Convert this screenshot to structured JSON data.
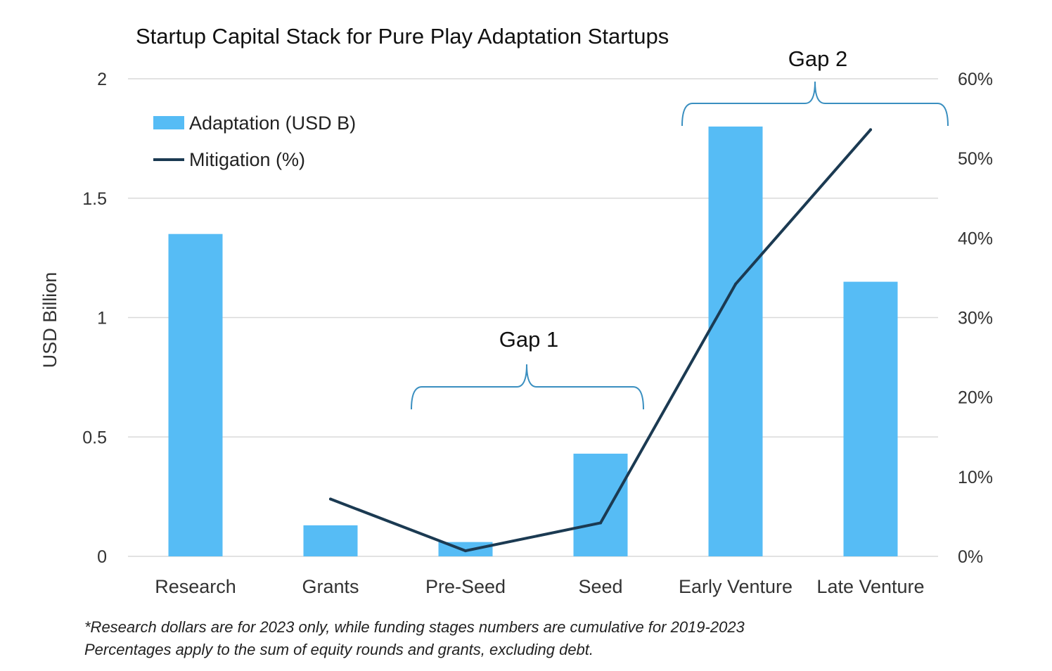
{
  "chart_data": {
    "type": "bar+line",
    "title": "Startup Capital Stack for Pure Play Adaptation Startups",
    "ylabel": "USD Billion",
    "ylim": [
      0,
      2
    ],
    "y_ticks": [
      "0",
      "0.5",
      "1",
      "1.5",
      "2"
    ],
    "y2lim": [
      0,
      60
    ],
    "y2_ticks": [
      "0%",
      "10%",
      "20%",
      "30%",
      "40%",
      "50%",
      "60%"
    ],
    "grid": true,
    "legend_position": "top-left",
    "categories": [
      "Research",
      "Grants",
      "Pre-Seed",
      "Seed",
      "Early Venture",
      "Late Venture"
    ],
    "series": [
      {
        "name": "Adaptation (USD B)",
        "type": "bar",
        "axis": "left",
        "color": "#56bcf5",
        "values": [
          1.35,
          0.13,
          0.06,
          0.43,
          1.8,
          1.15
        ]
      },
      {
        "name": "Mitigation (%)",
        "type": "line",
        "axis": "right",
        "color": "#1b3a52",
        "values": [
          null,
          7.2,
          0.7,
          4.2,
          34.2,
          53.6
        ]
      }
    ],
    "annotations": [
      {
        "label": "Gap 1",
        "from": "Pre-Seed",
        "to": "Seed"
      },
      {
        "label": "Gap 2",
        "from": "Early Venture",
        "to": "Late Venture"
      }
    ],
    "footnotes": [
      "*Research dollars are for 2023 only, while funding stages numbers are cumulative for 2019-2023",
      "Percentages apply to the sum of equity rounds and grants, excluding debt."
    ]
  }
}
